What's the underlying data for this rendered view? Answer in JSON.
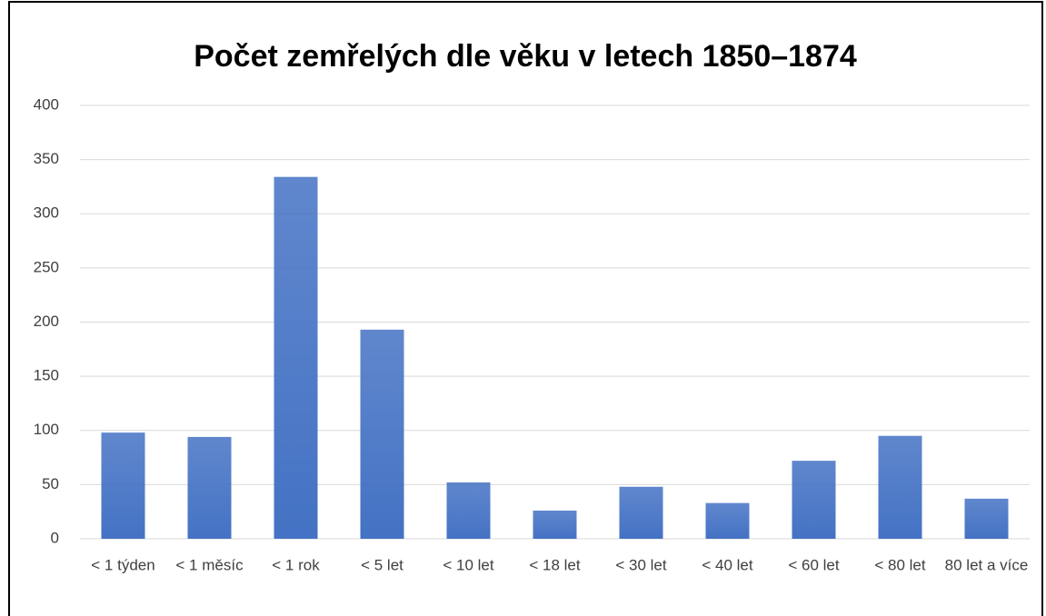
{
  "chart_data": {
    "type": "bar",
    "title": "Počet zemřelých dle věku v letech 1850–1874",
    "categories": [
      "< 1 týden",
      "< 1 měsíc",
      "< 1 rok",
      "< 5 let",
      "< 10 let",
      "< 18 let",
      "< 30 let",
      "< 40 let",
      "< 60 let",
      "< 80 let",
      "80 let a více"
    ],
    "values": [
      98,
      94,
      334,
      193,
      52,
      26,
      48,
      33,
      72,
      95,
      37
    ],
    "color": "#4472c4",
    "ylim": [
      0,
      400
    ],
    "yticks": [
      0,
      50,
      100,
      150,
      200,
      250,
      300,
      350,
      400
    ],
    "grid": true
  }
}
